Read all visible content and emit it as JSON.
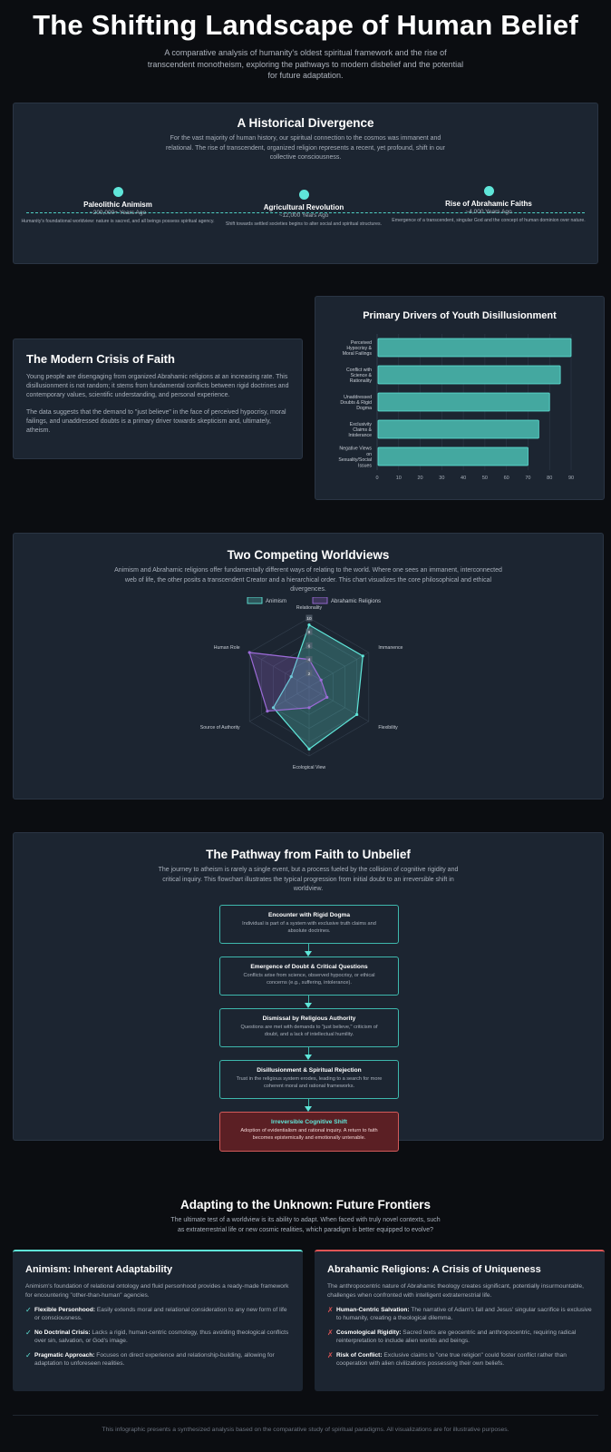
{
  "header": {
    "title": "The Shifting Landscape of Human Belief",
    "subtitle": "A comparative analysis of humanity's oldest spiritual framework and the rise of transcendent monotheism, exploring the pathways to modern disbelief and the potential for future adaptation."
  },
  "timeline": {
    "title": "A Historical Divergence",
    "intro": "For the vast majority of human history, our spiritual connection to the cosmos was immanent and relational. The rise of transcendent, organized religion represents a recent, yet profound, shift in our collective consciousness.",
    "items": [
      {
        "title": "Paleolithic Animism",
        "date": "~200,000+ Years Ago",
        "desc": "Humanity's foundational worldview: nature is sacred, and all beings possess spiritual agency."
      },
      {
        "title": "Agricultural Revolution",
        "date": "~12,000 Years Ago",
        "desc": "Shift towards settled societies begins to alter social and spiritual structures."
      },
      {
        "title": "Rise of Abrahamic Faiths",
        "date": "~4,000 Years Ago",
        "desc": "Emergence of a transcendent, singular God and the concept of human dominion over nature."
      }
    ]
  },
  "crisis": {
    "title": "The Modern Crisis of Faith",
    "p1": "Young people are disengaging from organized Abrahamic religions at an increasing rate. This disillusionment is not random; it stems from fundamental conflicts between rigid doctrines and contemporary values, scientific understanding, and personal experience.",
    "p2": "The data suggests that the demand to \"just believe\" in the face of perceived hypocrisy, moral failings, and unaddressed doubts is a primary driver towards skepticism and, ultimately, atheism."
  },
  "colors": {
    "teal": "#5fe6d9",
    "teal_fill": "#44a8a0",
    "purple": "#9c6bd8",
    "red": "#e05555"
  },
  "chart_data": [
    {
      "type": "bar",
      "orientation": "horizontal",
      "title": "Primary Drivers of Youth Disillusionment",
      "categories": [
        [
          "Perceived",
          "Hypocrisy &",
          "Moral Failings"
        ],
        [
          "Conflict with",
          "Science &",
          "Rationality"
        ],
        [
          "Unaddressed",
          "Doubts & Rigid",
          "Dogma"
        ],
        [
          "Exclusivity",
          "Claims &",
          "Intolerance"
        ],
        [
          "Negative Views",
          "on",
          "Sexuality/Social",
          "Issues"
        ]
      ],
      "values": [
        90,
        85,
        80,
        75,
        70
      ],
      "xlim": [
        0,
        90
      ],
      "xticks": [
        0,
        10,
        20,
        30,
        40,
        50,
        60,
        70,
        80,
        90
      ],
      "grid": true
    },
    {
      "type": "radar",
      "title": "",
      "axes": [
        "Relationality",
        "Immanence",
        "Flexibility",
        "Ecological View",
        "Source of Authority",
        "Human Role"
      ],
      "series": [
        {
          "name": "Animism",
          "values": [
            9,
            9,
            8,
            9,
            6,
            3
          ]
        },
        {
          "name": "Abrahamic Religions",
          "values": [
            4,
            2,
            3,
            3,
            7,
            10
          ]
        }
      ],
      "rlim": [
        0,
        10
      ],
      "rticks": [
        2,
        4,
        6,
        8,
        10
      ],
      "legend": "top"
    }
  ],
  "worldviews": {
    "title": "Two Competing Worldviews",
    "intro": "Animism and Abrahamic religions offer fundamentally different ways of relating to the world. Where one sees an immanent, interconnected web of life, the other posits a transcendent Creator and a hierarchical order. This chart visualizes the core philosophical and ethical divergences."
  },
  "pathway": {
    "title": "The Pathway from Faith to Unbelief",
    "intro": "The journey to atheism is rarely a single event, but a process fueled by the collision of cognitive rigidity and critical inquiry. This flowchart illustrates the typical progression from initial doubt to an irreversible shift in worldview.",
    "steps": [
      {
        "title": "Encounter with Rigid Dogma",
        "desc": "Individual is part of a system with exclusive truth claims and absolute doctrines."
      },
      {
        "title": "Emergence of Doubt & Critical Questions",
        "desc": "Conflicts arise from science, observed hypocrisy, or ethical concerns (e.g., suffering, intolerance)."
      },
      {
        "title": "Dismissal by Religious Authority",
        "desc": "Questions are met with demands to \"just believe,\" criticism of doubt, and a lack of intellectual humility."
      },
      {
        "title": "Disillusionment & Spiritual Rejection",
        "desc": "Trust in the religious system erodes, leading to a search for more coherent moral and rational frameworks."
      },
      {
        "title": "Irreversible Cognitive Shift",
        "desc": "Adoption of evidentialism and rational inquiry. A return to faith becomes epistemically and emotionally untenable."
      }
    ]
  },
  "future": {
    "title": "Adapting to the Unknown: Future Frontiers",
    "intro": "The ultimate test of a worldview is its ability to adapt. When faced with truly novel contexts, such as extraterrestrial life or new cosmic realities, which paradigm is better equipped to evolve?",
    "animism": {
      "title": "Animism: Inherent Adaptability",
      "intro": "Animism's foundation of relational ontology and fluid personhood provides a ready-made framework for encountering \"other-than-human\" agencies.",
      "mark": "✓",
      "items": [
        {
          "bold": "Flexible Personhood:",
          "text": " Easily extends moral and relational consideration to any new form of life or consciousness."
        },
        {
          "bold": "No Doctrinal Crisis:",
          "text": " Lacks a rigid, human-centric cosmology, thus avoiding theological conflicts over sin, salvation, or God's image."
        },
        {
          "bold": "Pragmatic Approach:",
          "text": " Focuses on direct experience and relationship-building, allowing for adaptation to unforeseen realities."
        }
      ]
    },
    "abrahamic": {
      "title": "Abrahamic Religions: A Crisis of Uniqueness",
      "intro": "The anthropocentric nature of Abrahamic theology creates significant, potentially insurmountable, challenges when confronted with intelligent extraterrestrial life.",
      "mark": "✗",
      "items": [
        {
          "bold": "Human-Centric Salvation:",
          "text": " The narrative of Adam's fall and Jesus' singular sacrifice is exclusive to humanity, creating a theological dilemma."
        },
        {
          "bold": "Cosmological Rigidity:",
          "text": " Sacred texts are geocentric and anthropocentric, requiring radical reinterpretation to include alien worlds and beings."
        },
        {
          "bold": "Risk of Conflict:",
          "text": " Exclusive claims to \"one true religion\" could foster conflict rather than cooperation with alien civilizations possessing their own beliefs."
        }
      ]
    }
  },
  "footer": {
    "text": "This infographic presents a synthesized analysis based on the comparative study of spiritual paradigms. All visualizations are for illustrative purposes."
  }
}
